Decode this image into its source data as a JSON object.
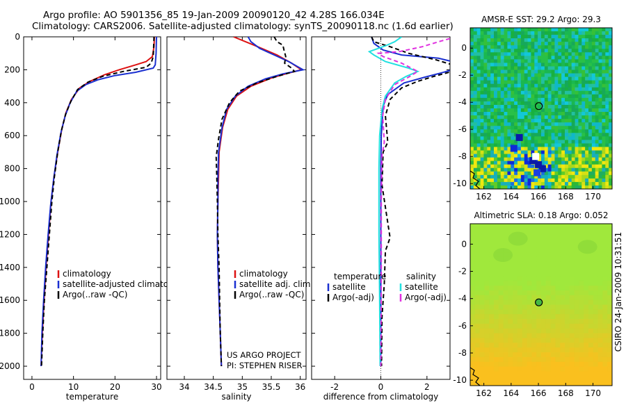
{
  "figure": {
    "title_line1": "Argo profile: AO 5901356_85 19-Jan-2009 20090120_42 4.28S 166.034E",
    "title_line2": "Climatology: CARS2006. Satellite-adjusted climatology: synTS_20090118.nc (1.6d earlier)",
    "side_label": "CSIRO 24-Jan-2009 10:31:51",
    "project_line1": "US ARGO PROJECT",
    "project_line2": "PI: STEPHEN RISER"
  },
  "colors": {
    "climatology": "#dd1111",
    "satellite": "#1a2fd0",
    "argo": "#000000",
    "satellite_salinity": "#22e0e0",
    "argo_adj_salinity": "#e030e0"
  },
  "chart_data": [
    {
      "id": "temperature",
      "type": "line",
      "xlabel": "temperature",
      "ylabel": "",
      "xlim": [
        -2,
        31
      ],
      "ylim": [
        0,
        2080
      ],
      "y_reversed": true,
      "xticks": [
        0,
        10,
        20,
        30
      ],
      "yticks": [
        0,
        200,
        400,
        600,
        800,
        1000,
        1200,
        1400,
        1600,
        1800,
        2000
      ],
      "legend": [
        "climatology",
        "satellite-adjusted climatology",
        "Argo(..raw -QC)"
      ],
      "series": [
        {
          "name": "climatology",
          "color": "climatology",
          "dash": false,
          "points": [
            [
              29.5,
              0
            ],
            [
              29.4,
              60
            ],
            [
              29.0,
              120
            ],
            [
              27.5,
              150
            ],
            [
              25.0,
              170
            ],
            [
              21.0,
              200
            ],
            [
              17.5,
              230
            ],
            [
              14.0,
              270
            ],
            [
              11.5,
              310
            ],
            [
              9.5,
              380
            ],
            [
              8.2,
              460
            ],
            [
              7.2,
              560
            ],
            [
              6.2,
              700
            ],
            [
              5.3,
              850
            ],
            [
              4.6,
              1000
            ],
            [
              4.0,
              1200
            ],
            [
              3.4,
              1400
            ],
            [
              2.9,
              1600
            ],
            [
              2.5,
              1800
            ],
            [
              2.2,
              2000
            ]
          ]
        },
        {
          "name": "satellite-adjusted climatology",
          "color": "satellite",
          "dash": false,
          "points": [
            [
              30.0,
              0
            ],
            [
              29.9,
              100
            ],
            [
              29.7,
              170
            ],
            [
              29.2,
              190
            ],
            [
              25.0,
              215
            ],
            [
              20.0,
              235
            ],
            [
              16.0,
              260
            ],
            [
              13.0,
              290
            ],
            [
              10.8,
              330
            ],
            [
              9.2,
              400
            ],
            [
              8.0,
              480
            ],
            [
              7.0,
              580
            ],
            [
              6.0,
              720
            ],
            [
              5.2,
              870
            ],
            [
              4.5,
              1020
            ],
            [
              3.9,
              1200
            ],
            [
              3.3,
              1400
            ],
            [
              2.8,
              1600
            ],
            [
              2.4,
              1800
            ],
            [
              2.2,
              2000
            ]
          ]
        },
        {
          "name": "Argo(..raw -QC)",
          "color": "argo",
          "dash": true,
          "points": [
            [
              29.4,
              0
            ],
            [
              29.3,
              60
            ],
            [
              29.2,
              120
            ],
            [
              28.7,
              160
            ],
            [
              27.5,
              185
            ],
            [
              22.0,
              210
            ],
            [
              17.0,
              240
            ],
            [
              13.5,
              275
            ],
            [
              11.0,
              320
            ],
            [
              9.4,
              390
            ],
            [
              8.1,
              470
            ],
            [
              7.1,
              570
            ],
            [
              6.2,
              700
            ],
            [
              5.4,
              850
            ],
            [
              4.8,
              1000
            ],
            [
              4.2,
              1200
            ],
            [
              3.6,
              1400
            ],
            [
              3.0,
              1600
            ],
            [
              2.6,
              1800
            ],
            [
              2.3,
              2000
            ]
          ]
        }
      ]
    },
    {
      "id": "salinity",
      "type": "line",
      "xlabel": "salinity",
      "ylabel": "",
      "xlim": [
        33.7,
        36.1
      ],
      "ylim": [
        0,
        2080
      ],
      "y_reversed": true,
      "xticks": [
        34,
        34.5,
        35,
        35.5,
        36
      ],
      "legend": [
        "climatology",
        "satellite adj. clim.",
        "Argo(..raw -QC)"
      ],
      "series": [
        {
          "name": "climatology",
          "color": "climatology",
          "dash": false,
          "points": [
            [
              34.85,
              0
            ],
            [
              35.2,
              50
            ],
            [
              35.6,
              110
            ],
            [
              35.85,
              160
            ],
            [
              36.02,
              200
            ],
            [
              35.8,
              220
            ],
            [
              35.5,
              250
            ],
            [
              35.15,
              300
            ],
            [
              34.9,
              360
            ],
            [
              34.75,
              440
            ],
            [
              34.66,
              550
            ],
            [
              34.6,
              700
            ],
            [
              34.59,
              850
            ],
            [
              34.58,
              1000
            ],
            [
              34.57,
              1200
            ],
            [
              34.58,
              1400
            ],
            [
              34.6,
              1600
            ],
            [
              34.62,
              1800
            ],
            [
              34.64,
              2000
            ]
          ]
        },
        {
          "name": "satellite adj. clim.",
          "color": "satellite",
          "dash": false,
          "points": [
            [
              35.1,
              0
            ],
            [
              35.15,
              30
            ],
            [
              35.3,
              70
            ],
            [
              35.55,
              110
            ],
            [
              35.8,
              150
            ],
            [
              36.05,
              200
            ],
            [
              35.7,
              225
            ],
            [
              35.4,
              255
            ],
            [
              35.1,
              300
            ],
            [
              34.88,
              360
            ],
            [
              34.73,
              440
            ],
            [
              34.65,
              550
            ],
            [
              34.59,
              700
            ],
            [
              34.58,
              850
            ],
            [
              34.58,
              1000
            ],
            [
              34.57,
              1200
            ],
            [
              34.58,
              1400
            ],
            [
              34.6,
              1600
            ],
            [
              34.62,
              1800
            ],
            [
              34.64,
              2000
            ]
          ]
        },
        {
          "name": "Argo(..raw -QC)",
          "color": "argo",
          "dash": true,
          "points": [
            [
              35.55,
              0
            ],
            [
              35.6,
              30
            ],
            [
              35.7,
              50
            ],
            [
              35.72,
              80
            ],
            [
              35.75,
              120
            ],
            [
              35.73,
              160
            ],
            [
              35.85,
              190
            ],
            [
              35.9,
              210
            ],
            [
              35.6,
              240
            ],
            [
              35.25,
              280
            ],
            [
              34.95,
              330
            ],
            [
              34.78,
              400
            ],
            [
              34.65,
              500
            ],
            [
              34.59,
              620
            ],
            [
              34.55,
              730
            ],
            [
              34.56,
              850
            ],
            [
              34.57,
              1000
            ],
            [
              34.58,
              1200
            ],
            [
              34.6,
              1400
            ],
            [
              34.61,
              1600
            ],
            [
              34.62,
              1800
            ],
            [
              34.64,
              2000
            ]
          ]
        }
      ]
    },
    {
      "id": "difference",
      "type": "line",
      "xlabel": "difference from climatology",
      "ylabel": "",
      "xlim": [
        -3,
        3
      ],
      "ylim": [
        0,
        2080
      ],
      "y_reversed": true,
      "xticks": [
        -2,
        0,
        2
      ],
      "legend_left_title": "temperature",
      "legend_right_title": "salinity",
      "legend": [
        "satellite",
        "Argo(-adj)",
        "satellite",
        "Argo(-adj)"
      ],
      "series": [
        {
          "name": "satellite",
          "color": "satellite",
          "dash": false,
          "points": [
            [
              -0.4,
              0
            ],
            [
              -0.3,
              40
            ],
            [
              0.1,
              80
            ],
            [
              0.9,
              110
            ],
            [
              2.5,
              130
            ],
            [
              3.1,
              150
            ],
            [
              3.1,
              200
            ],
            [
              2.6,
              220
            ],
            [
              1.9,
              245
            ],
            [
              1.0,
              280
            ],
            [
              0.3,
              350
            ],
            [
              0.1,
              420
            ],
            [
              0.02,
              600
            ],
            [
              0,
              800
            ],
            [
              0,
              1200
            ],
            [
              0,
              1600
            ],
            [
              0,
              2000
            ]
          ]
        },
        {
          "name": "Argo(-adj)",
          "color": "argo",
          "dash": true,
          "points": [
            [
              -0.4,
              0
            ],
            [
              -0.3,
              30
            ],
            [
              0.4,
              60
            ],
            [
              1.2,
              100
            ],
            [
              2.4,
              140
            ],
            [
              3.1,
              170
            ],
            [
              3.1,
              210
            ],
            [
              2.3,
              240
            ],
            [
              1.6,
              270
            ],
            [
              0.9,
              310
            ],
            [
              0.4,
              380
            ],
            [
              0.2,
              480
            ],
            [
              0.3,
              640
            ],
            [
              0.1,
              700
            ],
            [
              0.05,
              900
            ],
            [
              0.4,
              1220
            ],
            [
              0.2,
              1300
            ],
            [
              0.15,
              1500
            ],
            [
              0.05,
              1700
            ],
            [
              0.03,
              2000
            ]
          ]
        },
        {
          "name": "satellite",
          "color": "satellite_salinity",
          "dash": false,
          "points": [
            [
              0.9,
              0
            ],
            [
              0.6,
              30
            ],
            [
              0.2,
              55
            ],
            [
              -0.5,
              90
            ],
            [
              -0.3,
              110
            ],
            [
              0.2,
              150
            ],
            [
              1.2,
              190
            ],
            [
              1.6,
              210
            ],
            [
              1.1,
              240
            ],
            [
              0.6,
              280
            ],
            [
              0.2,
              360
            ],
            [
              0.05,
              440
            ],
            [
              -0.05,
              600
            ],
            [
              -0.08,
              800
            ],
            [
              -0.08,
              1200
            ],
            [
              -0.05,
              1600
            ],
            [
              -0.03,
              2000
            ]
          ]
        },
        {
          "name": "Argo(-adj)",
          "color": "argo_adj_salinity",
          "dash": true,
          "points": [
            [
              3.0,
              10
            ],
            [
              2.5,
              30
            ],
            [
              1.8,
              60
            ],
            [
              0.8,
              90
            ],
            [
              -0.1,
              100
            ],
            [
              0.1,
              120
            ],
            [
              0.9,
              160
            ],
            [
              1.6,
              210
            ],
            [
              1.2,
              245
            ],
            [
              0.6,
              290
            ],
            [
              0.2,
              380
            ],
            [
              0.08,
              480
            ],
            [
              0.15,
              640
            ],
            [
              0.05,
              720
            ],
            [
              0.02,
              1000
            ],
            [
              0.02,
              1400
            ],
            [
              0.0,
              2000
            ]
          ]
        }
      ]
    },
    {
      "id": "amsre_sst_map",
      "type": "heatmap",
      "title": "AMSR-E SST: 29.2 Argo: 29.3",
      "xlim": [
        161,
        171.4
      ],
      "ylim": [
        -10.4,
        1.5
      ],
      "xticks": [
        162,
        164,
        166,
        168,
        170
      ],
      "yticks": [
        0,
        -2,
        -4,
        -6,
        -8,
        -10
      ],
      "marker": {
        "x": 166.03,
        "y": -4.28,
        "filled": false
      }
    },
    {
      "id": "altimetric_sla_map",
      "type": "heatmap",
      "title": "Altimetric SLA: 0.18 Argo: 0.052",
      "xlim": [
        161,
        171.4
      ],
      "ylim": [
        -10.4,
        1.5
      ],
      "xticks": [
        162,
        164,
        166,
        168,
        170
      ],
      "yticks": [
        0,
        -2,
        -4,
        -6,
        -8,
        -10
      ],
      "marker": {
        "x": 166.03,
        "y": -4.28,
        "filled": true
      }
    }
  ]
}
